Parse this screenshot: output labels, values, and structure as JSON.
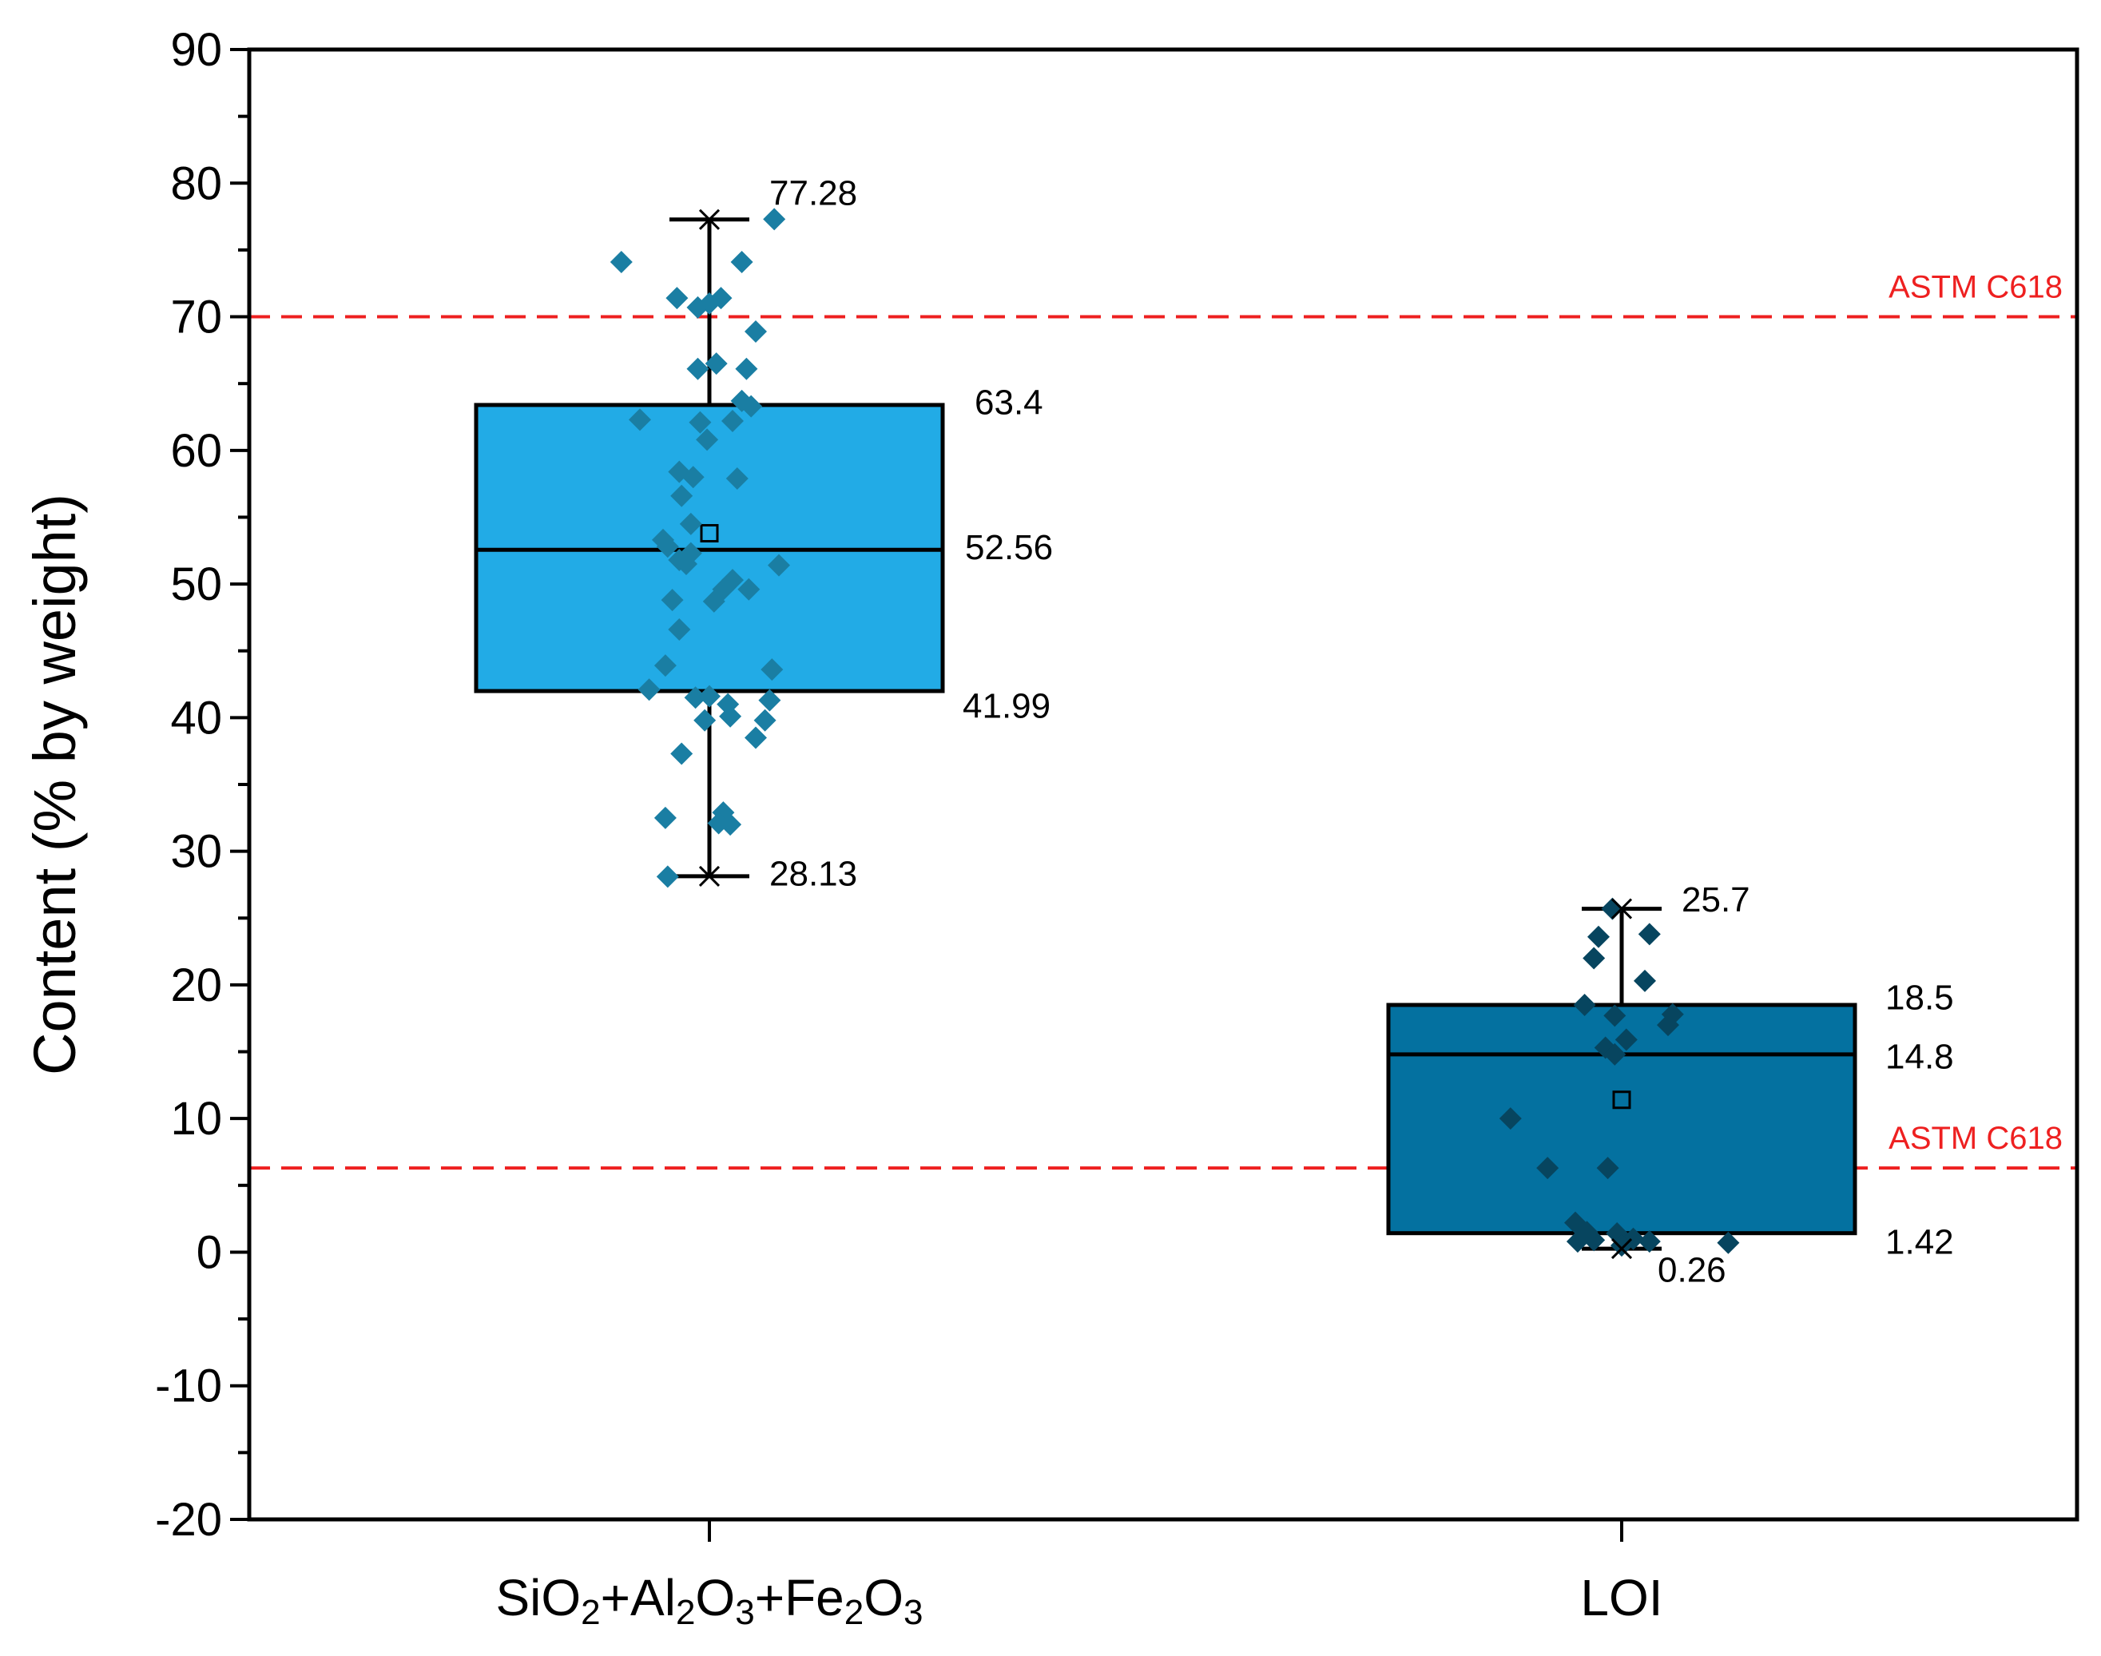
{
  "chart_data": {
    "type": "box",
    "ylabel": "Content (% by weight)",
    "ylim": [
      -20,
      90
    ],
    "yticks": [
      -20,
      -10,
      0,
      10,
      20,
      30,
      40,
      50,
      60,
      70,
      80,
      90
    ],
    "reference_lines": [
      {
        "label": "ASTM C618",
        "value": 70,
        "color": "#ee2020"
      },
      {
        "label": "ASTM C618",
        "value": 6.3,
        "color": "#ee2020"
      }
    ],
    "categories": [
      {
        "label_parts": [
          {
            "text": "SiO"
          },
          {
            "text": "2",
            "sub": true
          },
          {
            "text": "+Al"
          },
          {
            "text": "2",
            "sub": true
          },
          {
            "text": "O"
          },
          {
            "text": "3",
            "sub": true
          },
          {
            "text": "+Fe"
          },
          {
            "text": "2",
            "sub": true
          },
          {
            "text": "O"
          },
          {
            "text": "3",
            "sub": true
          }
        ],
        "box_color": "#22abe6",
        "point_color": "#1a7ea3",
        "min": 28.13,
        "q1": 41.99,
        "median": 52.56,
        "q3": 63.4,
        "max": 77.28,
        "mean": 53.8,
        "stat_labels": {
          "max": "77.28",
          "q3": "63.4",
          "median": "52.56",
          "q1": "41.99",
          "min": "28.13"
        },
        "points": [
          [
            -0.38,
            74.1
          ],
          [
            0.28,
            77.3
          ],
          [
            0.14,
            74.1
          ],
          [
            -0.14,
            71.4
          ],
          [
            0.05,
            71.4
          ],
          [
            0.0,
            71.0
          ],
          [
            -0.05,
            70.7
          ],
          [
            0.2,
            68.9
          ],
          [
            -0.05,
            66.1
          ],
          [
            0.03,
            66.5
          ],
          [
            0.16,
            66.1
          ],
          [
            0.18,
            63.3
          ],
          [
            0.14,
            63.7
          ],
          [
            -0.3,
            62.3
          ],
          [
            -0.04,
            62.1
          ],
          [
            0.1,
            62.2
          ],
          [
            -0.01,
            60.8
          ],
          [
            -0.13,
            58.4
          ],
          [
            -0.07,
            58.0
          ],
          [
            0.12,
            57.9
          ],
          [
            -0.12,
            56.6
          ],
          [
            -0.08,
            54.5
          ],
          [
            -0.2,
            53.3
          ],
          [
            -0.08,
            52.3
          ],
          [
            -0.13,
            51.8
          ],
          [
            -0.1,
            51.5
          ],
          [
            0.3,
            51.4
          ],
          [
            -0.18,
            52.8
          ],
          [
            -0.16,
            48.8
          ],
          [
            0.1,
            50.3
          ],
          [
            0.06,
            49.6
          ],
          [
            0.17,
            49.6
          ],
          [
            0.02,
            48.7
          ],
          [
            -0.13,
            46.6
          ],
          [
            0.27,
            43.6
          ],
          [
            -0.19,
            43.9
          ],
          [
            -0.26,
            42.1
          ],
          [
            -0.06,
            41.5
          ],
          [
            0.0,
            41.6
          ],
          [
            0.08,
            41.0
          ],
          [
            0.26,
            41.3
          ],
          [
            0.24,
            39.8
          ],
          [
            0.09,
            40.1
          ],
          [
            -0.02,
            39.8
          ],
          [
            0.2,
            38.5
          ],
          [
            -0.12,
            37.3
          ],
          [
            -0.19,
            32.5
          ],
          [
            0.06,
            32.9
          ],
          [
            0.04,
            32.1
          ],
          [
            0.09,
            32.0
          ],
          [
            -0.18,
            28.1
          ]
        ]
      },
      {
        "label_parts": [
          {
            "text": "LOI"
          }
        ],
        "box_color": "#0471a0",
        "point_color": "#07455f",
        "min": 0.26,
        "q1": 1.42,
        "median": 14.8,
        "q3": 18.5,
        "max": 25.7,
        "mean": 11.4,
        "stat_labels": {
          "max": "25.7",
          "q3": "18.5",
          "median": "14.8",
          "q1": "1.42",
          "min": "0.26"
        },
        "points": [
          [
            -0.04,
            25.7
          ],
          [
            -0.1,
            23.6
          ],
          [
            0.12,
            23.8
          ],
          [
            -0.12,
            22.0
          ],
          [
            0.1,
            20.3
          ],
          [
            -0.16,
            18.5
          ],
          [
            -0.03,
            17.7
          ],
          [
            0.22,
            17.8
          ],
          [
            0.2,
            17.0
          ],
          [
            0.02,
            15.9
          ],
          [
            -0.07,
            15.3
          ],
          [
            -0.03,
            14.8
          ],
          [
            -0.48,
            10.0
          ],
          [
            -0.32,
            6.3
          ],
          [
            -0.06,
            6.3
          ],
          [
            -0.2,
            2.2
          ],
          [
            -0.15,
            1.5
          ],
          [
            -0.02,
            1.4
          ],
          [
            0.05,
            1.0
          ],
          [
            0.12,
            0.8
          ],
          [
            -0.12,
            0.9
          ],
          [
            -0.19,
            0.8
          ],
          [
            0.0,
            0.5
          ],
          [
            0.46,
            0.7
          ]
        ]
      }
    ]
  }
}
